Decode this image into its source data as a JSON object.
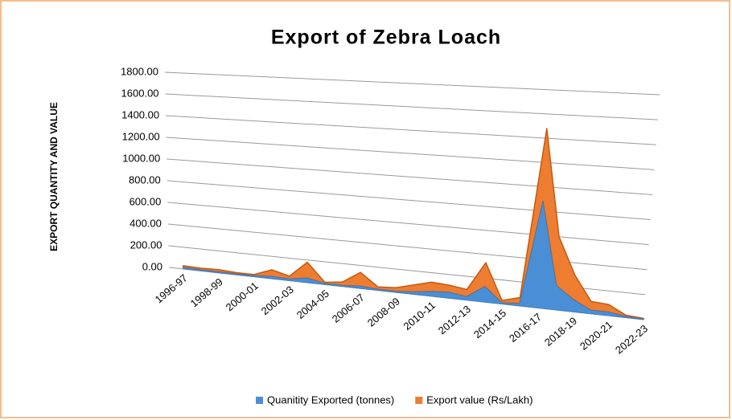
{
  "chart_data": {
    "type": "area3d",
    "title": "Export of Zebra Loach",
    "y_label": "EXPORT QUANTITY AND VALUE",
    "categories": [
      "1996-97",
      null,
      "1998-99",
      null,
      "2000-01",
      null,
      "2002-03",
      null,
      "2004-05",
      null,
      "2006-07",
      null,
      "2008-09",
      null,
      "2010-11",
      null,
      "2012-13",
      null,
      "2014-15",
      null,
      "2016-17",
      null,
      "2018-19",
      null,
      "2020-21",
      null,
      "2022-23"
    ],
    "series": [
      {
        "name": "Quanitity Exported (tonnes)",
        "color": "#4a8fd6",
        "values": [
          15,
          10,
          10,
          8,
          10,
          20,
          15,
          40,
          10,
          10,
          20,
          10,
          10,
          20,
          40,
          50,
          30,
          130,
          10,
          20,
          880,
          200,
          100,
          30,
          30,
          10,
          5
        ]
      },
      {
        "name": "Export  value (Rs/Lakh)",
        "color": "#ed7d31",
        "values": [
          15,
          15,
          20,
          12,
          10,
          60,
          25,
          140,
          10,
          30,
          120,
          20,
          30,
          60,
          80,
          60,
          60,
          200,
          20,
          50,
          600,
          400,
          200,
          70,
          60,
          10,
          5
        ]
      }
    ],
    "stacked": true,
    "ylim": [
      0,
      1800
    ],
    "yticks": [
      {
        "value": 0,
        "label": "0.00"
      },
      {
        "value": 200,
        "label": "200.00"
      },
      {
        "value": 400,
        "label": "400.00"
      },
      {
        "value": 600,
        "label": "600.00"
      },
      {
        "value": 800,
        "label": "800.00"
      },
      {
        "value": 1000,
        "label": "1000.00"
      },
      {
        "value": 1200,
        "label": "1200.00"
      },
      {
        "value": 1400,
        "label": "1400.00"
      },
      {
        "value": 1600,
        "label": "1600.00"
      },
      {
        "value": 1800,
        "label": "1800.00"
      }
    ],
    "grid": true,
    "legend": "bottom"
  }
}
